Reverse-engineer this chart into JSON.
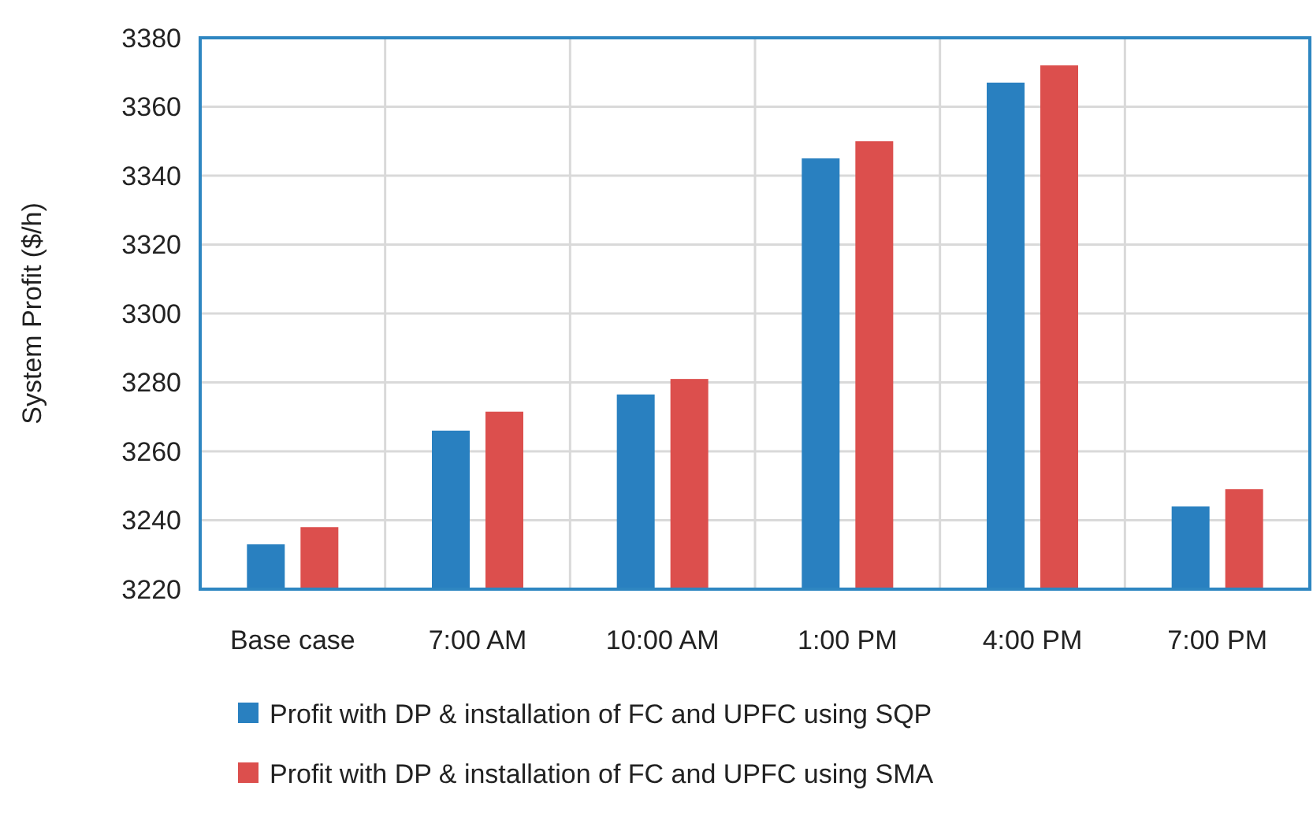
{
  "chart_data": {
    "type": "bar",
    "ylabel": "System Profit ($/h)",
    "categories": [
      "Base case",
      "7:00 AM",
      "10:00 AM",
      "1:00 PM",
      "4:00 PM",
      "7:00 PM"
    ],
    "series": [
      {
        "name": "Profit with DP & installation of FC and UPFC using SQP",
        "color": "#2980c0",
        "values": [
          3233,
          3266,
          3276.5,
          3345,
          3367,
          3244
        ]
      },
      {
        "name": "Profit with DP & installation of FC and UPFC using SMA",
        "color": "#dc4f4d",
        "values": [
          3238,
          3271.5,
          3281,
          3350,
          3372,
          3249
        ]
      }
    ],
    "ylim": [
      3220,
      3380
    ],
    "yticks": [
      3220,
      3240,
      3260,
      3280,
      3300,
      3320,
      3340,
      3360,
      3380
    ],
    "grid": true,
    "legend": "bottom"
  }
}
